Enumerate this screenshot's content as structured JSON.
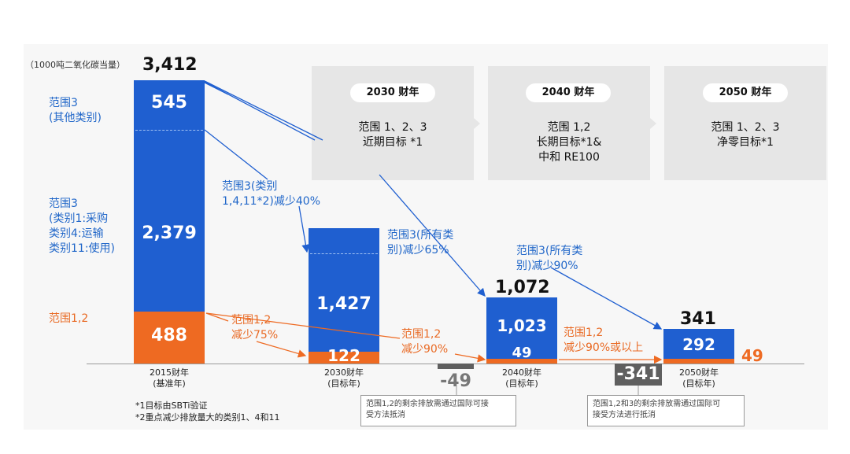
{
  "unit_label": "（1000吨二氧化碳当量）",
  "top_total": "3,412",
  "left_labels": {
    "scope3_other": "范围3\n(其他类别)",
    "scope3_main": "范围3\n(类别1:采购\n类别4:运输\n类别11:使用)",
    "scope12": "范围1,2"
  },
  "targets": [
    {
      "year": "2030 财年",
      "text": "范围 1、2、3\n近期目标 *1"
    },
    {
      "year": "2040 财年",
      "text": "范围 1,2\n长期目标*1&\n中和 RE100"
    },
    {
      "year": "2050 财年",
      "text": "范围 1、2、3\n净零目标*1"
    }
  ],
  "annotations": {
    "a1": "范围3(类别\n1,4,11*2)减少40%",
    "a2": "范围3(所有类\n别)减少65%",
    "a3": "范围3(所有类\n别)减少90%",
    "o1": "范围1,2\n减少75%",
    "o2": "范围1,2\n减少90%",
    "o3": "范围1,2\n减少90%或以上"
  },
  "totals": {
    "y2040": "1,072",
    "y2050": "341"
  },
  "notes": [
    "*1目标由SBTi验证",
    "*2重点减少排放量大的类别1、4和11"
  ],
  "offsets": {
    "neg2040": "-49",
    "neg2050": "-341",
    "box2040": "范围1,2的剩余排放需通过国际可接\n受方法抵消",
    "box2050": "范围1,2和3的剩余排放需通过国际可\n接受方法进行抵消"
  },
  "colors": {
    "scope3": "#1f5fd0",
    "scope12": "#ee6a22",
    "offset": "#5f5f5f"
  },
  "chart_data": {
    "type": "bar",
    "categories": [
      "2015财年\n(基准年)",
      "2030财年\n(目标年)",
      "2040财年\n(目标年)",
      "2050财年\n(目标年)"
    ],
    "series": [
      {
        "name": "范围1,2",
        "values": [
          488,
          122,
          49,
          49
        ]
      },
      {
        "name": "范围3",
        "values": [
          2924,
          1427,
          1023,
          292
        ]
      }
    ],
    "scope3_breakdown_2015": {
      "其他类别": 545,
      "类别1,4,11": 2379
    },
    "value_labels": [
      {
        "scope12": "488",
        "scope3": [
          "545",
          "2,379"
        ]
      },
      {
        "scope12": "122",
        "scope3": [
          "1,427"
        ]
      },
      {
        "scope12": "49",
        "scope3": [
          "1,023"
        ]
      },
      {
        "scope12": "49",
        "scope3": [
          "292"
        ]
      }
    ],
    "offsets": [
      null,
      null,
      -49,
      -341
    ],
    "ylabel": "（1000吨二氧化碳当量）"
  }
}
